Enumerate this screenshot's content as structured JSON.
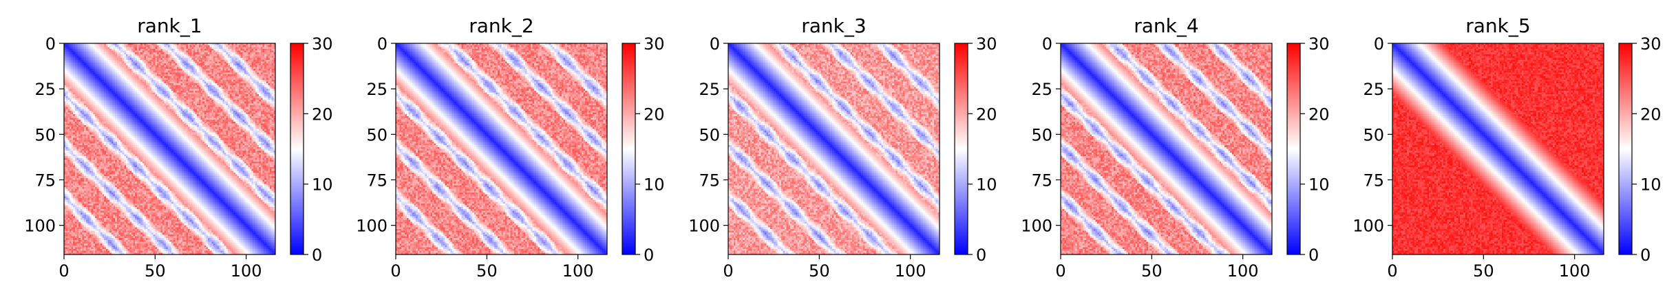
{
  "chart_data": [
    {
      "type": "heatmap",
      "title": "rank_1",
      "size": 116,
      "xlim": [
        0,
        116
      ],
      "ylim": [
        116,
        0
      ],
      "x_ticks": [
        0,
        50,
        100
      ],
      "y_ticks": [
        0,
        25,
        50,
        75,
        100
      ],
      "colorbar": {
        "range": [
          0,
          30
        ],
        "ticks": [
          0,
          10,
          20,
          30
        ],
        "colormap": "bwr"
      },
      "pattern": {
        "offdiag_stripes": [
          28,
          56,
          84
        ],
        "stripe_width": 6,
        "background_level": 22,
        "noise": 3
      }
    },
    {
      "type": "heatmap",
      "title": "rank_2",
      "size": 116,
      "xlim": [
        0,
        116
      ],
      "ylim": [
        116,
        0
      ],
      "x_ticks": [
        0,
        50,
        100
      ],
      "y_ticks": [
        0,
        25,
        50,
        75,
        100
      ],
      "colorbar": {
        "range": [
          0,
          30
        ],
        "ticks": [
          0,
          10,
          20,
          30
        ],
        "colormap": "bwr"
      },
      "pattern": {
        "offdiag_stripes": [
          28,
          56,
          84
        ],
        "stripe_width": 6,
        "background_level": 22,
        "noise": 3
      }
    },
    {
      "type": "heatmap",
      "title": "rank_3",
      "size": 116,
      "xlim": [
        0,
        116
      ],
      "ylim": [
        116,
        0
      ],
      "x_ticks": [
        0,
        50,
        100
      ],
      "y_ticks": [
        0,
        25,
        50,
        75,
        100
      ],
      "colorbar": {
        "range": [
          0,
          30
        ],
        "ticks": [
          0,
          10,
          20,
          30
        ],
        "colormap": "bwr"
      },
      "pattern": {
        "offdiag_stripes": [
          28,
          56,
          84
        ],
        "stripe_width": 6,
        "background_level": 21,
        "noise": 3
      }
    },
    {
      "type": "heatmap",
      "title": "rank_4",
      "size": 116,
      "xlim": [
        0,
        116
      ],
      "ylim": [
        116,
        0
      ],
      "x_ticks": [
        0,
        50,
        100
      ],
      "y_ticks": [
        0,
        25,
        50,
        75,
        100
      ],
      "colorbar": {
        "range": [
          0,
          30
        ],
        "ticks": [
          0,
          10,
          20,
          30
        ],
        "colormap": "bwr"
      },
      "pattern": {
        "offdiag_stripes": [
          28,
          56,
          84
        ],
        "stripe_width": 6,
        "background_level": 22,
        "noise": 3
      }
    },
    {
      "type": "heatmap",
      "title": "rank_5",
      "size": 116,
      "xlim": [
        0,
        116
      ],
      "ylim": [
        116,
        0
      ],
      "x_ticks": [
        0,
        50,
        100
      ],
      "y_ticks": [
        0,
        25,
        50,
        75,
        100
      ],
      "colorbar": {
        "range": [
          0,
          30
        ],
        "ticks": [
          0,
          10,
          20,
          30
        ],
        "colormap": "bwr"
      },
      "pattern": {
        "offdiag_stripes": [],
        "stripe_width": 0,
        "background_level": 27,
        "noise": 2
      }
    }
  ]
}
